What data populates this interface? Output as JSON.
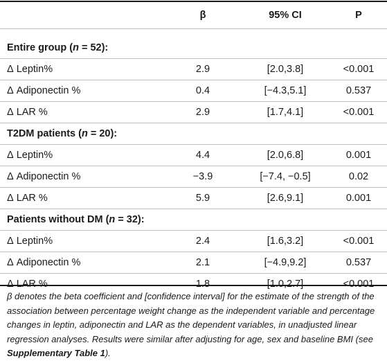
{
  "header": {
    "label": "",
    "beta": "β",
    "ci": "95% CI",
    "p": "P"
  },
  "delta_symbol": "Δ",
  "groups": [
    {
      "title_prefix": "Entire group (",
      "title_n": "n",
      "title_suffix": " = 52):",
      "rows": [
        {
          "label": "Leptin%",
          "beta": "2.9",
          "ci": "[2.0,3.8]",
          "p": "<0.001"
        },
        {
          "label": "Adiponectin %",
          "beta": "0.4",
          "ci": "[−4.3,5.1]",
          "p": "0.537"
        },
        {
          "label": "LAR %",
          "beta": "2.9",
          "ci": "[1.7,4.1]",
          "p": "<0.001"
        }
      ]
    },
    {
      "title_prefix": "T2DM patients (",
      "title_n": "n",
      "title_suffix": " = 20):",
      "rows": [
        {
          "label": "Leptin%",
          "beta": "4.4",
          "ci": "[2.0,6.8]",
          "p": "0.001"
        },
        {
          "label": "Adiponectin %",
          "beta": "−3.9",
          "ci": "[−7.4, −0.5]",
          "p": "0.02"
        },
        {
          "label": "LAR %",
          "beta": "5.9",
          "ci": "[2.6,9.1]",
          "p": "0.001"
        }
      ]
    },
    {
      "title_prefix": "Patients without DM (",
      "title_n": "n",
      "title_suffix": " = 32):",
      "rows": [
        {
          "label": "Leptin%",
          "beta": "2.4",
          "ci": "[1.6,3.2]",
          "p": "<0.001"
        },
        {
          "label": "Adiponectin %",
          "beta": "2.1",
          "ci": "[−4.9,9.2]",
          "p": "0.537"
        },
        {
          "label": "LAR %",
          "beta": "1.8",
          "ci": "[1.0,2.7]",
          "p": "<0.001"
        }
      ]
    }
  ],
  "footnote": {
    "symbol": "β",
    "text_before": " denotes the beta coefficient and [confidence interval] for the estimate of the strength of the association between percentage weight change as the independent variable and percentage changes in leptin, adiponectin and LAR as the dependent variables, in unadjusted linear regression analyses. Results were similar after adjusting for age, sex and baseline BMI (see ",
    "link_text": "Supplementary Table 1",
    "text_after": ")."
  }
}
